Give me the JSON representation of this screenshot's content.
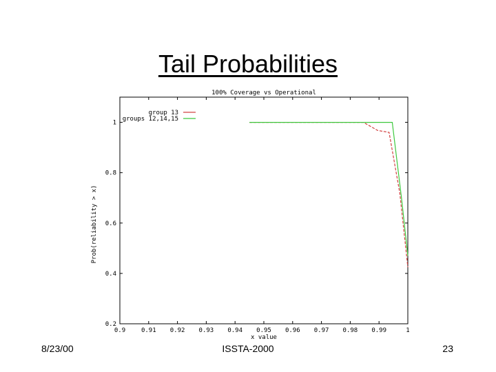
{
  "slide": {
    "title": "Tail Probabilities",
    "footer_date": "8/23/00",
    "footer_center": "ISSTA-2000",
    "footer_page": "23"
  },
  "colors": {
    "series_1": "#d24040",
    "series_2": "#3cc83c",
    "axis": "#000000"
  },
  "chart_data": {
    "type": "line",
    "title": "100% Coverage vs Operational",
    "xlabel": "x value",
    "ylabel": "Prob(reliability > x)",
    "xlim": [
      0.9,
      1.0
    ],
    "ylim": [
      0.2,
      1.1
    ],
    "x_ticks": [
      0.9,
      0.91,
      0.92,
      0.93,
      0.94,
      0.95,
      0.96,
      0.97,
      0.98,
      0.99,
      1.0
    ],
    "x_tick_labels": [
      "0.9",
      "0.91",
      "0.92",
      "0.93",
      "0.94",
      "0.95",
      "0.96",
      "0.97",
      "0.98",
      "0.99",
      "1"
    ],
    "y_ticks": [
      0.2,
      0.4,
      0.6,
      0.8,
      1.0
    ],
    "y_tick_labels": [
      "0.2",
      "0.4",
      "0.6",
      "0.8",
      "1"
    ],
    "legend_position": "top-left",
    "series": [
      {
        "name": "group 13",
        "color": "#d24040",
        "dash": "4,2",
        "x": [
          0.945,
          0.9846,
          0.9895,
          0.9935,
          0.9972,
          1.0
        ],
        "y": [
          1.0,
          1.0,
          0.968,
          0.96,
          0.72,
          0.425
        ]
      },
      {
        "name": "groups 12,14,15",
        "color": "#3cc83c",
        "dash": "",
        "x": [
          0.945,
          0.9946,
          0.9978,
          1.0
        ],
        "y": [
          1.0,
          1.0,
          0.7,
          0.47
        ]
      }
    ]
  }
}
